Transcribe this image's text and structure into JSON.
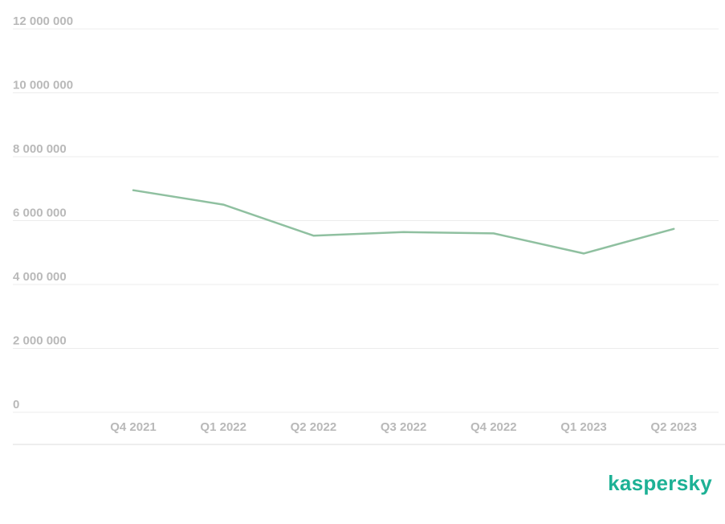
{
  "brand": {
    "logo_text": "kaspersky",
    "color": "#1db195"
  },
  "chart_data": {
    "type": "line",
    "categories": [
      "Q4 2021",
      "Q1 2022",
      "Q2 2022",
      "Q3 2022",
      "Q4 2022",
      "Q1 2023",
      "Q2 2023"
    ],
    "series": [
      {
        "values": [
          6950000,
          6500000,
          5530000,
          5640000,
          5600000,
          4970000,
          5740000
        ],
        "color": "#8fc0a0"
      }
    ],
    "ylim": [
      0,
      12000000
    ],
    "yticks": [
      0,
      2000000,
      4000000,
      6000000,
      8000000,
      10000000,
      12000000
    ],
    "ytick_labels": [
      "0",
      "2 000 000",
      "4 000 000",
      "6 000 000",
      "8 000 000",
      "10 000 000",
      "12 000 000"
    ],
    "grid": true,
    "legend": "none",
    "title": "",
    "xlabel": "",
    "ylabel": ""
  }
}
